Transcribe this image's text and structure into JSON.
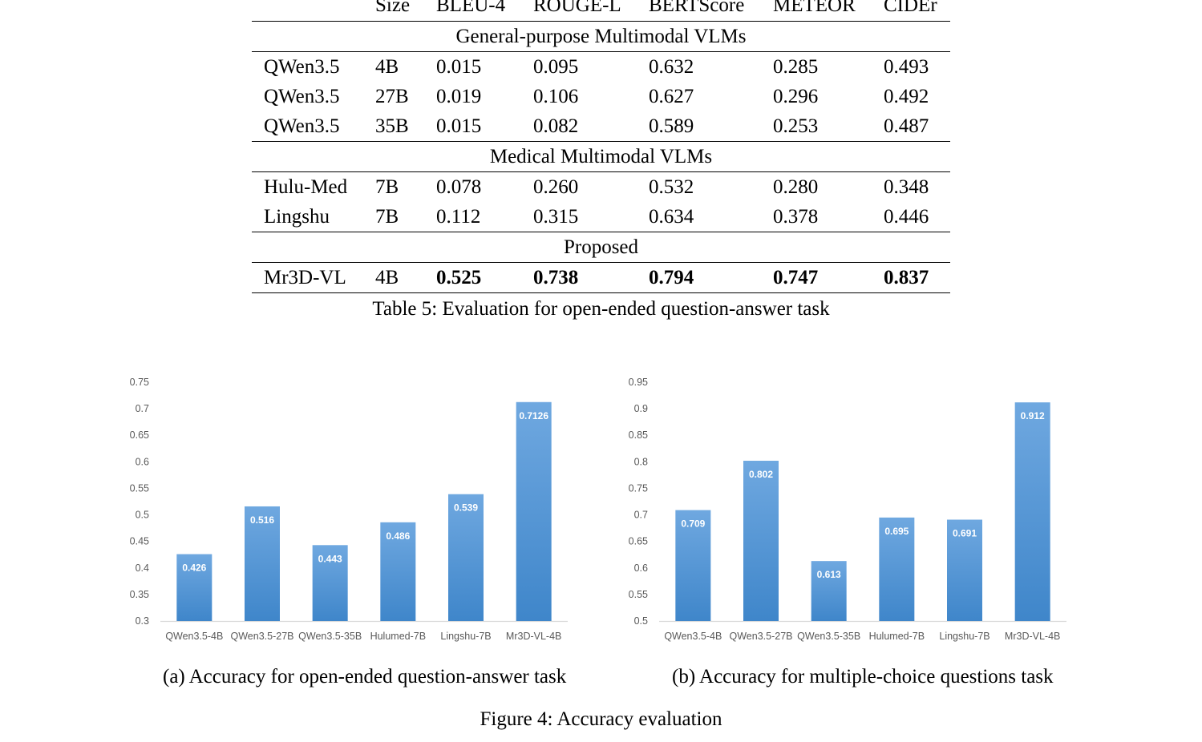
{
  "table": {
    "headers": [
      "",
      "Size",
      "BLEU-4",
      "ROUGE-L",
      "BERTScore",
      "METEOR",
      "CIDEr"
    ],
    "sections": [
      {
        "title": "General-purpose Multimodal VLMs",
        "rows": [
          {
            "model": "QWen3.5",
            "size": "4B",
            "bleu4": "0.015",
            "rougel": "0.095",
            "bertscore": "0.632",
            "meteor": "0.285",
            "cider": "0.493"
          },
          {
            "model": "QWen3.5",
            "size": "27B",
            "bleu4": "0.019",
            "rougel": "0.106",
            "bertscore": "0.627",
            "meteor": "0.296",
            "cider": "0.492"
          },
          {
            "model": "QWen3.5",
            "size": "35B",
            "bleu4": "0.015",
            "rougel": "0.082",
            "bertscore": "0.589",
            "meteor": "0.253",
            "cider": "0.487"
          }
        ]
      },
      {
        "title": "Medical Multimodal VLMs",
        "rows": [
          {
            "model": "Hulu-Med",
            "size": "7B",
            "bleu4": "0.078",
            "rougel": "0.260",
            "bertscore": "0.532",
            "meteor": "0.280",
            "cider": "0.348"
          },
          {
            "model": "Lingshu",
            "size": "7B",
            "bleu4": "0.112",
            "rougel": "0.315",
            "bertscore": "0.634",
            "meteor": "0.378",
            "cider": "0.446"
          }
        ]
      },
      {
        "title": "Proposed",
        "rows": [
          {
            "model": "Mr3D-VL",
            "size": "4B",
            "bleu4": "0.525",
            "rougel": "0.738",
            "bertscore": "0.794",
            "meteor": "0.747",
            "cider": "0.837",
            "bold": true
          }
        ]
      }
    ],
    "caption": "Table 5: Evaluation for open-ended question-answer task"
  },
  "figure": {
    "caption": "Figure 4: Accuracy evaluation",
    "subcaptions": [
      "(a) Accuracy for open-ended question-answer task",
      "(b) Accuracy for multiple-choice questions task"
    ]
  },
  "chart_data": [
    {
      "type": "bar",
      "categories": [
        "QWen3.5-4B",
        "QWen3.5-27B",
        "QWen3.5-35B",
        "Hulumed-7B",
        "Lingshu-7B",
        "Mr3D-VL-4B"
      ],
      "values": [
        0.426,
        0.516,
        0.443,
        0.486,
        0.539,
        0.7126
      ],
      "data_labels": [
        "0.426",
        "0.516",
        "0.443",
        "0.486",
        "0.539",
        "0.7126"
      ],
      "yticks": [
        "0.3",
        "0.35",
        "0.4",
        "0.45",
        "0.5",
        "0.55",
        "0.6",
        "0.65",
        "0.7",
        "0.75"
      ],
      "ylim": [
        0.3,
        0.75
      ],
      "grid": false,
      "bar_color_top": "#6fa8e0",
      "bar_color_bottom": "#3f86ca"
    },
    {
      "type": "bar",
      "categories": [
        "QWen3.5-4B",
        "QWen3.5-27B",
        "QWen3.5-35B",
        "Hulumed-7B",
        "Lingshu-7B",
        "Mr3D-VL-4B"
      ],
      "values": [
        0.709,
        0.802,
        0.613,
        0.695,
        0.691,
        0.912
      ],
      "data_labels": [
        "0.709",
        "0.802",
        "0.613",
        "0.695",
        "0.691",
        "0.912"
      ],
      "yticks": [
        "0.5",
        "0.55",
        "0.6",
        "0.65",
        "0.7",
        "0.75",
        "0.8",
        "0.85",
        "0.9",
        "0.95"
      ],
      "ylim": [
        0.5,
        0.95
      ],
      "grid": false,
      "bar_color_top": "#6fa8e0",
      "bar_color_bottom": "#3f86ca"
    }
  ]
}
